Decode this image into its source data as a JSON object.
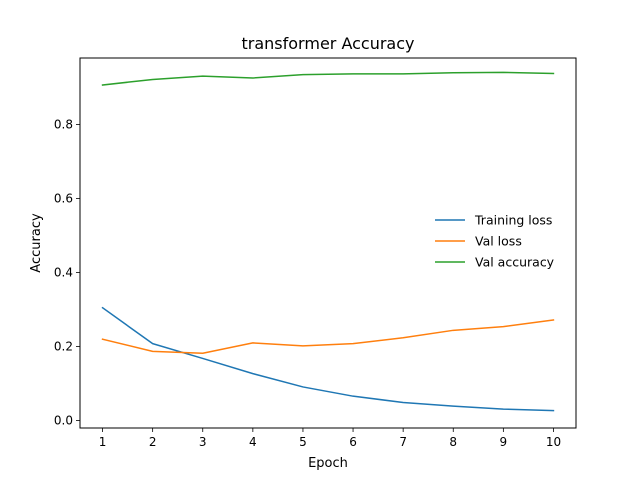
{
  "chart_data": {
    "type": "line",
    "title": "transformer Accuracy",
    "xlabel": "Epoch",
    "ylabel": "Accuracy",
    "x": [
      1,
      2,
      3,
      4,
      5,
      6,
      7,
      8,
      9,
      10
    ],
    "xlim": [
      0.55,
      10.45
    ],
    "ylim": [
      -0.02,
      0.98
    ],
    "xticks": [
      1,
      2,
      3,
      4,
      5,
      6,
      7,
      8,
      9,
      10
    ],
    "yticks": [
      0.0,
      0.2,
      0.4,
      0.6,
      0.8
    ],
    "ytick_labels": [
      "0.0",
      "0.2",
      "0.4",
      "0.6",
      "0.8"
    ],
    "grid": false,
    "legend": "center-right",
    "series": [
      {
        "name": "Training loss",
        "color": "#1f77b4",
        "values": [
          0.305,
          0.208,
          0.168,
          0.127,
          0.091,
          0.066,
          0.049,
          0.039,
          0.031,
          0.027
        ]
      },
      {
        "name": "Val loss",
        "color": "#ff7f0e",
        "values": [
          0.22,
          0.187,
          0.182,
          0.21,
          0.202,
          0.208,
          0.224,
          0.244,
          0.254,
          0.272
        ]
      },
      {
        "name": "Val accuracy",
        "color": "#2ca02c",
        "values": [
          0.907,
          0.922,
          0.931,
          0.926,
          0.935,
          0.937,
          0.937,
          0.94,
          0.941,
          0.938
        ]
      }
    ]
  }
}
